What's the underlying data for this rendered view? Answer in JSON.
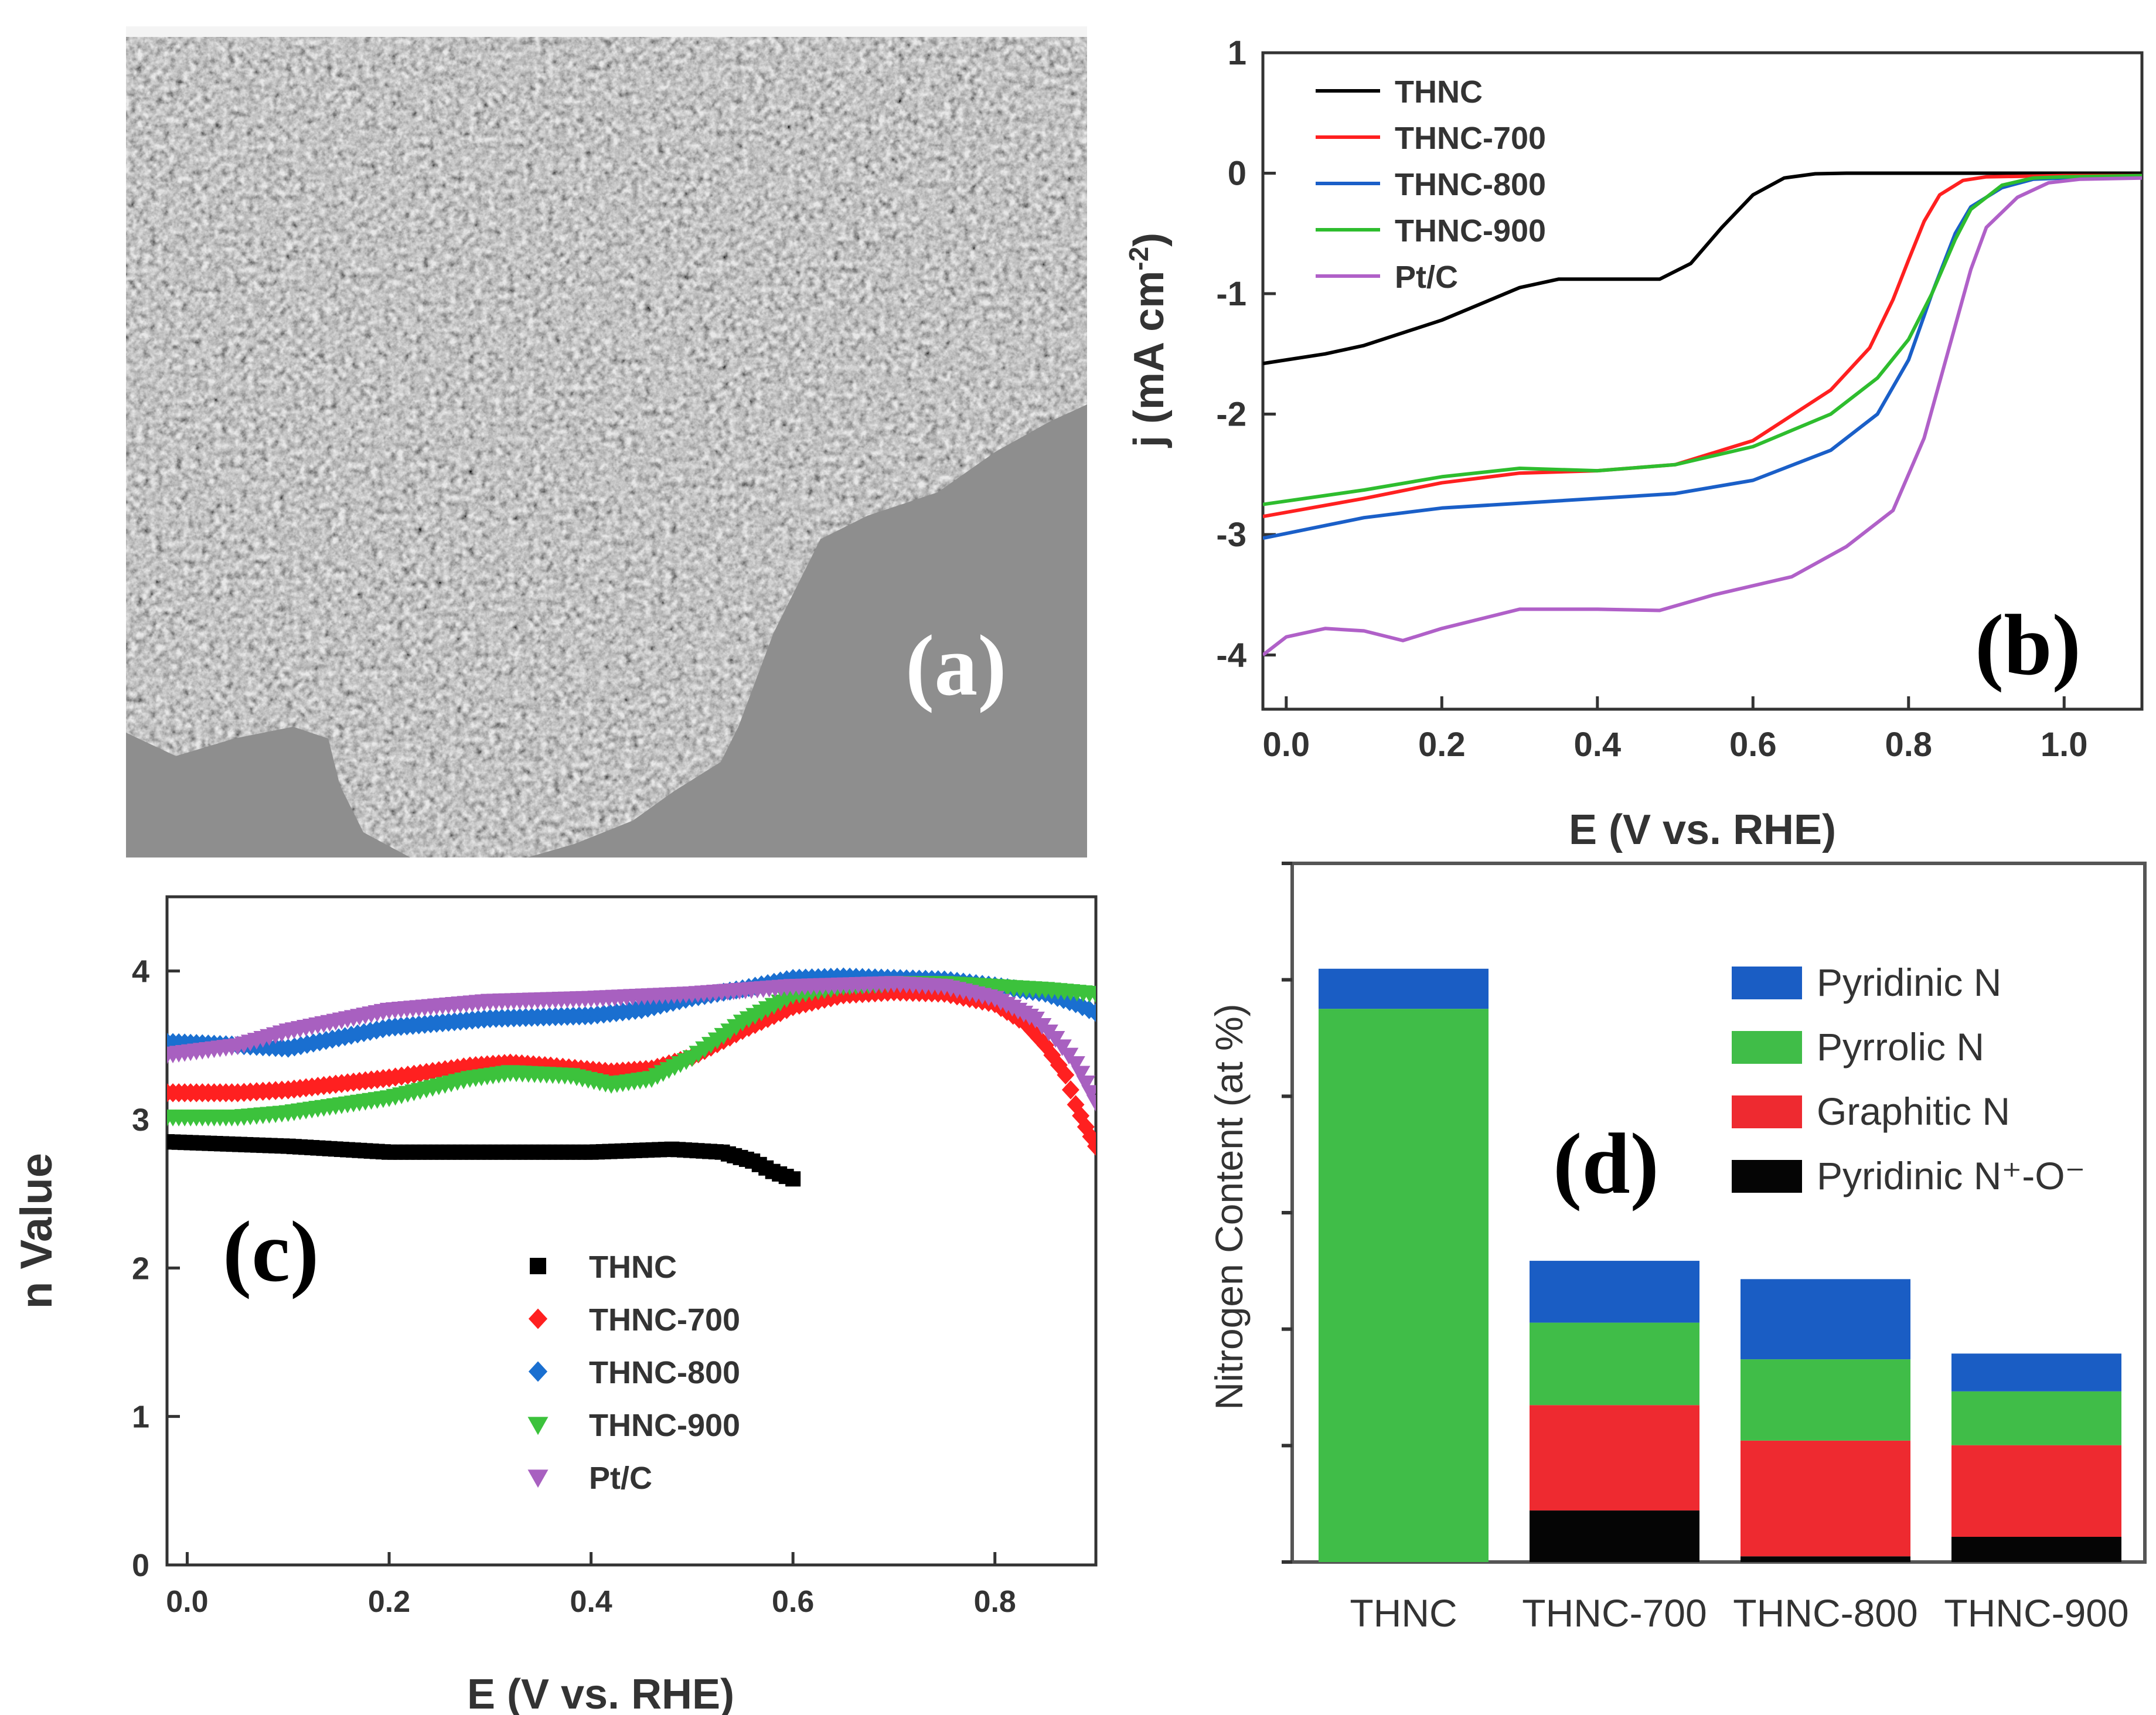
{
  "panels": {
    "a": {
      "label": "(a)"
    },
    "b": {
      "label": "(b)"
    },
    "c": {
      "label": "(c)"
    },
    "d": {
      "label": "(d)"
    }
  },
  "chart_data": [
    {
      "panel": "b",
      "type": "line",
      "xlabel": "E (V vs. RHE)",
      "ylabel": "j (mA cm",
      "ylabel_sup": "-2",
      "ylabel_close": ")",
      "xlim": [
        -0.03,
        1.1
      ],
      "ylim": [
        -4.45,
        1.0
      ],
      "xticks": [
        0.0,
        0.2,
        0.4,
        0.6,
        0.8,
        1.0
      ],
      "xtick_labels": [
        "0.0",
        "0.2",
        "0.4",
        "0.6",
        "0.8",
        "1.0"
      ],
      "yticks": [
        1,
        0,
        -1,
        -2,
        -3,
        -4
      ],
      "ytick_labels": [
        "1",
        "0",
        "-1",
        "-2",
        "-3",
        "-4"
      ],
      "legend_position": "top-left",
      "series": [
        {
          "name": "THNC",
          "color": "#000000",
          "points": [
            [
              -0.03,
              -1.58
            ],
            [
              0.05,
              -1.5
            ],
            [
              0.1,
              -1.43
            ],
            [
              0.2,
              -1.22
            ],
            [
              0.3,
              -0.95
            ],
            [
              0.35,
              -0.88
            ],
            [
              0.42,
              -0.88
            ],
            [
              0.48,
              -0.88
            ],
            [
              0.52,
              -0.75
            ],
            [
              0.56,
              -0.45
            ],
            [
              0.6,
              -0.18
            ],
            [
              0.64,
              -0.04
            ],
            [
              0.68,
              -0.005
            ],
            [
              0.72,
              0.0
            ],
            [
              1.1,
              0.0
            ]
          ]
        },
        {
          "name": "THNC-700",
          "color": "#ff2020",
          "points": [
            [
              -0.03,
              -2.85
            ],
            [
              0.1,
              -2.7
            ],
            [
              0.2,
              -2.57
            ],
            [
              0.3,
              -2.49
            ],
            [
              0.4,
              -2.47
            ],
            [
              0.5,
              -2.42
            ],
            [
              0.6,
              -2.22
            ],
            [
              0.7,
              -1.8
            ],
            [
              0.75,
              -1.45
            ],
            [
              0.78,
              -1.05
            ],
            [
              0.8,
              -0.72
            ],
            [
              0.82,
              -0.4
            ],
            [
              0.84,
              -0.18
            ],
            [
              0.87,
              -0.06
            ],
            [
              0.9,
              -0.03
            ],
            [
              1.0,
              -0.02
            ],
            [
              1.1,
              -0.02
            ]
          ]
        },
        {
          "name": "THNC-800",
          "color": "#1a5fc8",
          "points": [
            [
              -0.03,
              -3.03
            ],
            [
              0.1,
              -2.86
            ],
            [
              0.2,
              -2.78
            ],
            [
              0.3,
              -2.74
            ],
            [
              0.4,
              -2.7
            ],
            [
              0.5,
              -2.66
            ],
            [
              0.6,
              -2.55
            ],
            [
              0.7,
              -2.3
            ],
            [
              0.76,
              -2.0
            ],
            [
              0.8,
              -1.55
            ],
            [
              0.83,
              -1.0
            ],
            [
              0.86,
              -0.5
            ],
            [
              0.88,
              -0.28
            ],
            [
              0.92,
              -0.12
            ],
            [
              0.96,
              -0.05
            ],
            [
              1.0,
              -0.04
            ],
            [
              1.1,
              -0.03
            ]
          ]
        },
        {
          "name": "THNC-900",
          "color": "#2ebd2e",
          "points": [
            [
              -0.03,
              -2.75
            ],
            [
              0.1,
              -2.63
            ],
            [
              0.2,
              -2.52
            ],
            [
              0.3,
              -2.45
            ],
            [
              0.4,
              -2.47
            ],
            [
              0.5,
              -2.42
            ],
            [
              0.6,
              -2.27
            ],
            [
              0.7,
              -2.0
            ],
            [
              0.76,
              -1.7
            ],
            [
              0.8,
              -1.38
            ],
            [
              0.83,
              -1.0
            ],
            [
              0.86,
              -0.55
            ],
            [
              0.88,
              -0.3
            ],
            [
              0.92,
              -0.1
            ],
            [
              0.96,
              -0.04
            ],
            [
              1.0,
              -0.03
            ],
            [
              1.1,
              -0.02
            ]
          ]
        },
        {
          "name": "Pt/C",
          "color": "#b060c8",
          "points": [
            [
              -0.03,
              -4.0
            ],
            [
              0.0,
              -3.85
            ],
            [
              0.05,
              -3.78
            ],
            [
              0.1,
              -3.8
            ],
            [
              0.15,
              -3.88
            ],
            [
              0.2,
              -3.78
            ],
            [
              0.3,
              -3.62
            ],
            [
              0.4,
              -3.62
            ],
            [
              0.48,
              -3.63
            ],
            [
              0.55,
              -3.5
            ],
            [
              0.65,
              -3.35
            ],
            [
              0.72,
              -3.1
            ],
            [
              0.78,
              -2.8
            ],
            [
              0.82,
              -2.2
            ],
            [
              0.85,
              -1.5
            ],
            [
              0.88,
              -0.8
            ],
            [
              0.9,
              -0.45
            ],
            [
              0.94,
              -0.2
            ],
            [
              0.98,
              -0.08
            ],
            [
              1.02,
              -0.05
            ],
            [
              1.1,
              -0.04
            ]
          ]
        }
      ]
    },
    {
      "panel": "c",
      "type": "scatter",
      "xlabel": "E (V vs. RHE)",
      "ylabel": "n Value",
      "xlim": [
        -0.02,
        0.9
      ],
      "ylim": [
        0,
        4.5
      ],
      "xticks": [
        0.0,
        0.2,
        0.4,
        0.6,
        0.8
      ],
      "xtick_labels": [
        "0.0",
        "0.2",
        "0.4",
        "0.6",
        "0.8"
      ],
      "yticks": [
        0,
        1,
        2,
        3,
        4
      ],
      "ytick_labels": [
        "0",
        "1",
        "2",
        "3",
        "4"
      ],
      "legend_position": "lower-center",
      "series": [
        {
          "name": "THNC",
          "color": "#000000",
          "marker": "square",
          "points": [
            [
              -0.02,
              2.85
            ],
            [
              0.1,
              2.82
            ],
            [
              0.2,
              2.78
            ],
            [
              0.3,
              2.78
            ],
            [
              0.4,
              2.78
            ],
            [
              0.48,
              2.8
            ],
            [
              0.53,
              2.78
            ],
            [
              0.56,
              2.72
            ],
            [
              0.58,
              2.65
            ],
            [
              0.6,
              2.6
            ]
          ]
        },
        {
          "name": "THNC-700",
          "color": "#ff2020",
          "marker": "diamond",
          "points": [
            [
              -0.02,
              3.18
            ],
            [
              0.05,
              3.18
            ],
            [
              0.1,
              3.2
            ],
            [
              0.2,
              3.28
            ],
            [
              0.28,
              3.36
            ],
            [
              0.32,
              3.38
            ],
            [
              0.36,
              3.36
            ],
            [
              0.42,
              3.32
            ],
            [
              0.46,
              3.34
            ],
            [
              0.5,
              3.42
            ],
            [
              0.55,
              3.6
            ],
            [
              0.6,
              3.76
            ],
            [
              0.65,
              3.84
            ],
            [
              0.7,
              3.86
            ],
            [
              0.75,
              3.85
            ],
            [
              0.8,
              3.78
            ],
            [
              0.83,
              3.65
            ],
            [
              0.85,
              3.5
            ],
            [
              0.87,
              3.3
            ],
            [
              0.88,
              3.1
            ],
            [
              0.89,
              2.95
            ],
            [
              0.9,
              2.82
            ]
          ]
        },
        {
          "name": "THNC-800",
          "color": "#1a6fd0",
          "marker": "diamond",
          "points": [
            [
              -0.02,
              3.52
            ],
            [
              0.05,
              3.5
            ],
            [
              0.1,
              3.48
            ],
            [
              0.15,
              3.55
            ],
            [
              0.2,
              3.62
            ],
            [
              0.3,
              3.68
            ],
            [
              0.4,
              3.7
            ],
            [
              0.45,
              3.74
            ],
            [
              0.5,
              3.82
            ],
            [
              0.55,
              3.88
            ],
            [
              0.6,
              3.95
            ],
            [
              0.65,
              3.96
            ],
            [
              0.7,
              3.95
            ],
            [
              0.75,
              3.94
            ],
            [
              0.8,
              3.9
            ],
            [
              0.85,
              3.85
            ],
            [
              0.88,
              3.78
            ],
            [
              0.9,
              3.72
            ]
          ]
        },
        {
          "name": "THNC-900",
          "color": "#3cc23c",
          "marker": "triangle-down",
          "points": [
            [
              -0.02,
              3.02
            ],
            [
              0.05,
              3.02
            ],
            [
              0.1,
              3.05
            ],
            [
              0.2,
              3.15
            ],
            [
              0.28,
              3.28
            ],
            [
              0.32,
              3.32
            ],
            [
              0.38,
              3.3
            ],
            [
              0.42,
              3.24
            ],
            [
              0.46,
              3.28
            ],
            [
              0.5,
              3.42
            ],
            [
              0.55,
              3.66
            ],
            [
              0.6,
              3.84
            ],
            [
              0.65,
              3.9
            ],
            [
              0.7,
              3.92
            ],
            [
              0.75,
              3.92
            ],
            [
              0.8,
              3.9
            ],
            [
              0.85,
              3.88
            ],
            [
              0.9,
              3.85
            ]
          ]
        },
        {
          "name": "Pt/C",
          "color": "#a860c0",
          "marker": "triangle-down",
          "points": [
            [
              -0.02,
              3.44
            ],
            [
              0.05,
              3.5
            ],
            [
              0.1,
              3.6
            ],
            [
              0.2,
              3.74
            ],
            [
              0.3,
              3.8
            ],
            [
              0.4,
              3.82
            ],
            [
              0.5,
              3.85
            ],
            [
              0.6,
              3.9
            ],
            [
              0.7,
              3.92
            ],
            [
              0.75,
              3.9
            ],
            [
              0.8,
              3.82
            ],
            [
              0.84,
              3.68
            ],
            [
              0.86,
              3.55
            ],
            [
              0.88,
              3.38
            ],
            [
              0.89,
              3.25
            ],
            [
              0.9,
              3.12
            ]
          ]
        }
      ]
    },
    {
      "panel": "d",
      "type": "bar",
      "stacked": true,
      "ylabel": "Nitrogen Content (at %)",
      "ylim": [
        0,
        6.1
      ],
      "ytick_count": 7,
      "categories": [
        "THNC",
        "THNC-700",
        "THNC-800",
        "THNC-900"
      ],
      "legend_position": "top-right",
      "series": [
        {
          "name": "Pyridinic N⁺-O⁻",
          "color": "#050505",
          "values": [
            0.0,
            0.45,
            0.05,
            0.22
          ]
        },
        {
          "name": "Graphitic N",
          "color": "#ee2a30",
          "values": [
            0.0,
            0.92,
            1.01,
            0.8
          ]
        },
        {
          "name": "Pyrrolic N",
          "color": "#40bd48",
          "values": [
            4.83,
            0.72,
            0.71,
            0.47
          ]
        },
        {
          "name": "Pyridinic N",
          "color": "#1a5dc4",
          "values": [
            0.35,
            0.54,
            0.7,
            0.33
          ]
        }
      ],
      "legend_order": [
        "Pyridinic N",
        "Pyrrolic N",
        "Graphitic N",
        "Pyridinic N⁺-O⁻"
      ]
    }
  ]
}
